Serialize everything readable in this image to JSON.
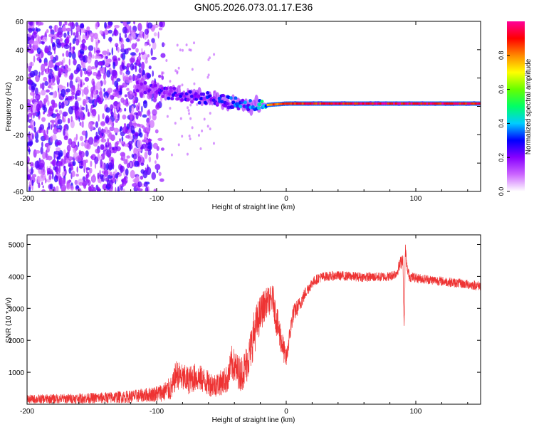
{
  "chart_data": [
    {
      "type": "heatmap",
      "title": "GN05.2026.073.01.17.E36",
      "xlabel": "Height of straight line (km)",
      "ylabel": "Frequency (Hz)",
      "xlim": [
        -200,
        150
      ],
      "ylim": [
        -60,
        60
      ],
      "xticks": [
        "-200",
        "-100",
        "0",
        "100"
      ],
      "yticks": [
        "60",
        "40",
        "20",
        "0",
        "-20",
        "-40",
        "-60"
      ],
      "noise_region_x": [
        -200,
        -95
      ],
      "signal_track": [
        {
          "x": -115,
          "freq": 15,
          "amp": 0.3
        },
        {
          "x": -105,
          "freq": 12,
          "amp": 0.35
        },
        {
          "x": -95,
          "freq": 10,
          "amp": 0.4
        },
        {
          "x": -85,
          "freq": 9,
          "amp": 0.4
        },
        {
          "x": -75,
          "freq": 7,
          "amp": 0.42
        },
        {
          "x": -65,
          "freq": 6,
          "amp": 0.45
        },
        {
          "x": -55,
          "freq": 5,
          "amp": 0.45
        },
        {
          "x": -45,
          "freq": 3,
          "amp": 0.5
        },
        {
          "x": -35,
          "freq": 1,
          "amp": 0.55
        },
        {
          "x": -25,
          "freq": 1,
          "amp": 0.6
        },
        {
          "x": -15,
          "freq": 1,
          "amp": 0.85
        },
        {
          "x": 0,
          "freq": 2,
          "amp": 0.95
        },
        {
          "x": 50,
          "freq": 2,
          "amp": 1.0
        },
        {
          "x": 100,
          "freq": 2,
          "amp": 1.0
        },
        {
          "x": 150,
          "freq": 2,
          "amp": 1.0
        }
      ],
      "colorbar": {
        "label": "Normalized spectral amplitude",
        "ticks": [
          "0.0",
          "0.2",
          "0.4",
          "0.6",
          "0.8"
        ],
        "range": [
          0,
          1
        ],
        "colors": [
          "#ffffff",
          "#cc66ff",
          "#8800ff",
          "#0000ff",
          "#00ccff",
          "#00ff66",
          "#66ff00",
          "#ffff00",
          "#ff8800",
          "#ff0000",
          "#ff0099"
        ]
      }
    },
    {
      "type": "line",
      "xlabel": "Height of straight line (km)",
      "ylabel": "SNR (10 * v/v)",
      "xlim": [
        -200,
        150
      ],
      "ylim": [
        0,
        5300
      ],
      "xticks": [
        "-200",
        "-100",
        "0",
        "100"
      ],
      "yticks": [
        "1000",
        "2000",
        "3000",
        "4000",
        "5000"
      ],
      "series": [
        {
          "name": "SNR",
          "color": "#ee3333",
          "x": [
            -200,
            -180,
            -160,
            -140,
            -120,
            -110,
            -100,
            -95,
            -88,
            -85,
            -80,
            -75,
            -70,
            -65,
            -60,
            -55,
            -50,
            -45,
            -42,
            -38,
            -35,
            -32,
            -28,
            -25,
            -22,
            -20,
            -18,
            -15,
            -12,
            -10,
            -8,
            -5,
            -2,
            0,
            5,
            10,
            15,
            20,
            25,
            30,
            40,
            50,
            60,
            70,
            80,
            85,
            90,
            91,
            92,
            93,
            95,
            100,
            110,
            120,
            130,
            140,
            150
          ],
          "y": [
            150,
            170,
            180,
            200,
            240,
            280,
            330,
            380,
            500,
            950,
            800,
            750,
            850,
            780,
            650,
            600,
            680,
            800,
            1300,
            1050,
            950,
            1100,
            1600,
            2200,
            2600,
            2800,
            3000,
            3200,
            3250,
            3300,
            2700,
            2200,
            1700,
            1400,
            2800,
            3100,
            3500,
            3800,
            3950,
            4000,
            4020,
            4000,
            3980,
            3980,
            4000,
            4100,
            4600,
            2300,
            4900,
            4300,
            4000,
            3950,
            3900,
            3850,
            3800,
            3750,
            3700
          ],
          "noise": [
            140,
            150,
            160,
            180,
            200,
            220,
            260,
            300,
            400,
            450,
            450,
            450,
            450,
            420,
            400,
            380,
            400,
            450,
            550,
            550,
            550,
            600,
            650,
            700,
            650,
            600,
            550,
            450,
            450,
            450,
            500,
            500,
            400,
            300,
            300,
            250,
            200,
            170,
            160,
            150,
            150,
            150,
            150,
            150,
            150,
            160,
            250,
            200,
            250,
            200,
            160,
            150,
            150,
            150,
            150,
            150,
            150
          ]
        }
      ]
    }
  ]
}
